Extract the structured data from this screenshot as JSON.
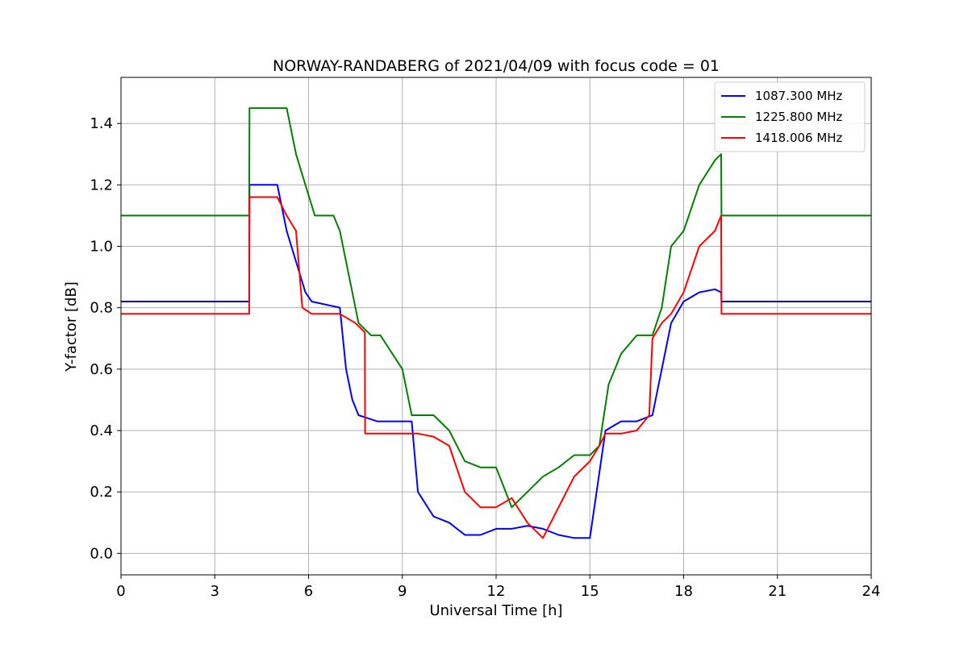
{
  "chart_data": {
    "type": "line",
    "title": "NORWAY-RANDABERG of 2021/04/09 with focus code = 01",
    "xlabel": "Universal Time [h]",
    "ylabel": "Y-factor [dB]",
    "xlim": [
      0,
      24
    ],
    "ylim": [
      -0.07,
      1.55
    ],
    "xticks": [
      0,
      3,
      6,
      9,
      12,
      15,
      18,
      21,
      24
    ],
    "xtick_labels": [
      "0",
      "3",
      "6",
      "9",
      "12",
      "15",
      "18",
      "21",
      "24"
    ],
    "yticks": [
      0.0,
      0.2,
      0.4,
      0.6,
      0.8,
      1.0,
      1.2,
      1.4
    ],
    "ytick_labels": [
      "0.0",
      "0.2",
      "0.4",
      "0.6",
      "0.8",
      "1.0",
      "1.2",
      "1.4"
    ],
    "grid": true,
    "legend_position": "top-right",
    "series": [
      {
        "name": "1087.300 MHz",
        "color": "#0000ff",
        "x": [
          0,
          4.1,
          4.11,
          5.0,
          5.3,
          5.6,
          5.9,
          6.1,
          7.0,
          7.2,
          7.4,
          7.6,
          7.9,
          8.2,
          9.3,
          9.5,
          10.0,
          10.5,
          11.0,
          11.5,
          12.0,
          12.5,
          13.0,
          13.5,
          14.0,
          14.5,
          15.0,
          15.5,
          16.0,
          16.5,
          17.0,
          17.3,
          17.6,
          18.0,
          18.5,
          19.0,
          19.2,
          19.21,
          24
        ],
        "y": [
          0.82,
          0.82,
          1.2,
          1.2,
          1.05,
          0.95,
          0.85,
          0.82,
          0.8,
          0.6,
          0.5,
          0.45,
          0.44,
          0.43,
          0.43,
          0.2,
          0.12,
          0.1,
          0.06,
          0.06,
          0.08,
          0.08,
          0.09,
          0.08,
          0.06,
          0.05,
          0.05,
          0.4,
          0.43,
          0.43,
          0.45,
          0.6,
          0.75,
          0.82,
          0.85,
          0.86,
          0.85,
          0.82,
          0.82
        ]
      },
      {
        "name": "1225.800 MHz",
        "color": "#008000",
        "x": [
          0,
          4.1,
          4.11,
          5.3,
          5.6,
          5.9,
          6.2,
          6.8,
          7.0,
          7.3,
          7.6,
          8.0,
          8.3,
          9.0,
          9.3,
          9.6,
          10.0,
          10.5,
          11.0,
          11.5,
          12.0,
          12.5,
          13.0,
          13.5,
          14.0,
          14.5,
          15.0,
          15.3,
          15.6,
          16.0,
          16.5,
          17.0,
          17.3,
          17.6,
          18.0,
          18.5,
          19.0,
          19.2,
          19.21,
          24
        ],
        "y": [
          1.1,
          1.1,
          1.45,
          1.45,
          1.3,
          1.2,
          1.1,
          1.1,
          1.05,
          0.9,
          0.75,
          0.71,
          0.71,
          0.6,
          0.45,
          0.45,
          0.45,
          0.4,
          0.3,
          0.28,
          0.28,
          0.15,
          0.2,
          0.25,
          0.28,
          0.32,
          0.32,
          0.35,
          0.55,
          0.65,
          0.71,
          0.71,
          0.8,
          1.0,
          1.05,
          1.2,
          1.28,
          1.3,
          1.1,
          1.1
        ]
      },
      {
        "name": "1418.006 MHz",
        "color": "#ff0000",
        "x": [
          0,
          4.1,
          4.11,
          5.0,
          5.3,
          5.6,
          5.8,
          6.1,
          7.0,
          7.5,
          7.8,
          7.81,
          8.5,
          9.0,
          9.5,
          10.0,
          10.5,
          11.0,
          11.5,
          12.0,
          12.5,
          13.0,
          13.5,
          14.0,
          14.5,
          15.0,
          15.3,
          15.5,
          16.0,
          16.5,
          16.9,
          17.0,
          17.3,
          17.6,
          18.0,
          18.5,
          19.0,
          19.2,
          19.21,
          24
        ],
        "y": [
          0.78,
          0.78,
          1.16,
          1.16,
          1.1,
          1.05,
          0.8,
          0.78,
          0.78,
          0.75,
          0.72,
          0.39,
          0.39,
          0.39,
          0.39,
          0.38,
          0.35,
          0.2,
          0.15,
          0.15,
          0.18,
          0.1,
          0.05,
          0.15,
          0.25,
          0.3,
          0.35,
          0.39,
          0.39,
          0.4,
          0.45,
          0.7,
          0.75,
          0.78,
          0.85,
          1.0,
          1.05,
          1.1,
          0.78,
          0.78
        ]
      }
    ]
  }
}
